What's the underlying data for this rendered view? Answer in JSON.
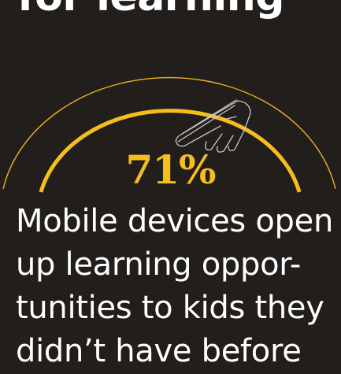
{
  "heading": "for learning",
  "stat": {
    "value": "71%"
  },
  "caption_lines": [
    "Mobile devices open",
    "up learning oppor-",
    "tunities to kids they",
    "didn’t have before"
  ],
  "colors": {
    "background": "#211e1b",
    "accent": "#f5be1e",
    "text": "#ffffff"
  },
  "icons": {
    "hand": "hand-tapping-icon"
  }
}
